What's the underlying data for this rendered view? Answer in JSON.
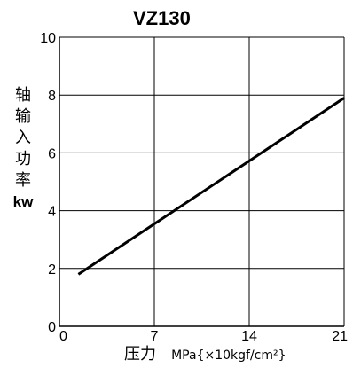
{
  "chart_data": {
    "type": "line",
    "title": "VZ130",
    "ylabel_chars": [
      "轴",
      "输",
      "入",
      "功",
      "率"
    ],
    "ylabel_unit": "kw",
    "xlabel_cn": "压力",
    "xlabel_en": "MPa{×10kgf/cm²}",
    "xlim": [
      0,
      21
    ],
    "ylim": [
      0,
      10
    ],
    "x_ticks": [
      0,
      7,
      14,
      21
    ],
    "y_ticks": [
      0,
      2,
      4,
      6,
      8,
      10
    ],
    "grid": true,
    "series": [
      {
        "x": [
          1.4,
          21
        ],
        "y": [
          1.8,
          7.9
        ]
      }
    ]
  }
}
